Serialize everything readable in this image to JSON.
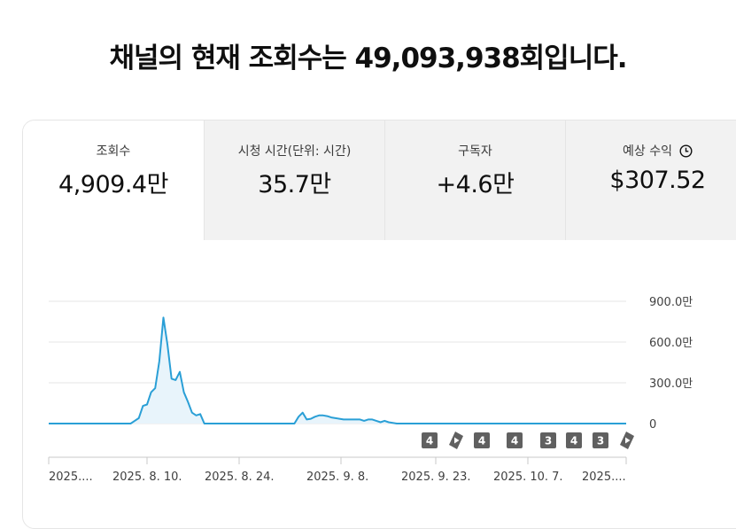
{
  "headline": "채널의 현재 조회수는 49,093,938회입니다.",
  "metrics": [
    {
      "label": "조회수",
      "value": "4,909.4만",
      "active": true
    },
    {
      "label": "시청 시간(단위: 시간)",
      "value": "35.7만",
      "active": false
    },
    {
      "label": "구독자",
      "value": "+4.6만",
      "active": false
    },
    {
      "label": "예상 수익",
      "value": "$307.52",
      "active": false,
      "icon": "clock-icon"
    }
  ],
  "colors": {
    "line": "#2a9fd6",
    "fill": "#e8f4fb",
    "grid": "#e6e6e6",
    "marker": "#606060"
  },
  "chart_data": {
    "type": "area",
    "ylim": [
      0,
      9000000
    ],
    "y_ticks": [
      {
        "value": 0,
        "label": "0"
      },
      {
        "value": 3000000,
        "label": "300.0만"
      },
      {
        "value": 6000000,
        "label": "600.0만"
      },
      {
        "value": 9000000,
        "label": "900.0만"
      }
    ],
    "x_tick_labels": [
      "2025....",
      "2025. 8. 10.",
      "2025. 8. 24.",
      "2025. 9. 8.",
      "2025. 9. 23.",
      "2025. 10. 7.",
      "2025...."
    ],
    "values": [
      0,
      0,
      0,
      0,
      0,
      0,
      0,
      0,
      0,
      0,
      0,
      0,
      0,
      0,
      0,
      0,
      0,
      0,
      0,
      0,
      0,
      200000,
      400000,
      1300000,
      1400000,
      2300000,
      2600000,
      4600000,
      7800000,
      5800000,
      3300000,
      3200000,
      3800000,
      2300000,
      1600000,
      800000,
      600000,
      700000,
      0,
      0,
      0,
      0,
      0,
      0,
      0,
      0,
      0,
      0,
      0,
      0,
      0,
      0,
      0,
      0,
      0,
      0,
      0,
      0,
      0,
      0,
      0,
      500000,
      800000,
      300000,
      350000,
      500000,
      600000,
      600000,
      550000,
      450000,
      400000,
      350000,
      300000,
      300000,
      300000,
      300000,
      300000,
      200000,
      300000,
      300000,
      200000,
      100000,
      200000,
      100000,
      50000,
      0,
      0,
      0,
      0,
      0,
      0,
      0,
      0,
      0,
      0,
      0,
      0,
      0,
      0,
      0,
      0,
      0,
      0,
      0,
      0,
      0,
      0,
      0,
      0,
      0,
      0,
      0,
      0,
      0,
      0,
      0,
      0,
      0,
      0,
      0,
      0,
      0,
      0,
      0,
      0,
      0,
      0,
      0,
      0,
      0,
      0,
      0,
      0,
      0,
      0,
      0,
      0,
      0,
      0,
      0,
      0,
      0
    ],
    "markers": [
      {
        "kind": "count",
        "label": "4"
      },
      {
        "kind": "shorts",
        "label": ""
      },
      {
        "kind": "count",
        "label": "4"
      },
      {
        "kind": "count",
        "label": "4"
      },
      {
        "kind": "count",
        "label": "3"
      },
      {
        "kind": "count",
        "label": "4"
      },
      {
        "kind": "count",
        "label": "3"
      },
      {
        "kind": "shorts",
        "label": ""
      }
    ],
    "grid": true
  }
}
